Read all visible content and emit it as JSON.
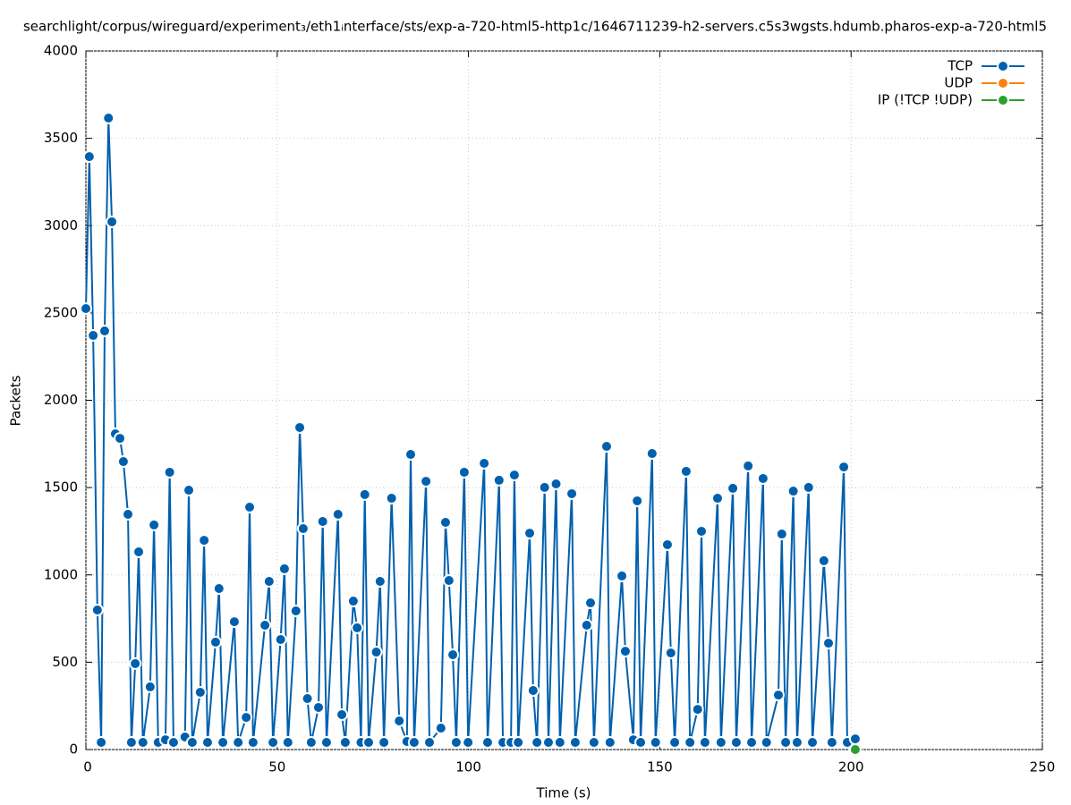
{
  "chart_data": {
    "type": "line",
    "title": "searchlight/corpus/wireguard/experiment₃/eth1ᵢnterface/sts/exp-a-720-html5-http1c/1646711239-h2-servers.c5s3wgsts.hdumb.pharos-exp-a-720-html5",
    "x_label": "Time (s)",
    "y_label": "Packets",
    "xlim": [
      0,
      250
    ],
    "xticks": [
      0,
      50,
      100,
      150,
      200,
      250
    ],
    "ylim": [
      0,
      4000
    ],
    "yticks": [
      0,
      500,
      1000,
      1500,
      2000,
      2500,
      3000,
      3500,
      4000
    ],
    "grid": true,
    "legend": "top-right",
    "series": [
      {
        "name": "TCP",
        "color": "#0060ad",
        "x": [
          0,
          0.9,
          1.9,
          3.0,
          4.0,
          4.9,
          5.9,
          6.8,
          7.7,
          8.9,
          9.8,
          11.0,
          11.9,
          12.9,
          13.8,
          14.9,
          16.8,
          17.8,
          18.9,
          20.8,
          21.9,
          22.9,
          25.9,
          26.9,
          27.8,
          29.9,
          30.9,
          31.8,
          33.9,
          34.8,
          35.8,
          38.8,
          39.8,
          41.9,
          42.8,
          43.7,
          46.8,
          47.9,
          48.9,
          50.9,
          51.9,
          52.8,
          54.9,
          55.9,
          56.8,
          57.9,
          58.9,
          60.8,
          61.9,
          62.9,
          65.9,
          66.9,
          67.8,
          69.9,
          70.9,
          71.9,
          72.9,
          73.9,
          75.9,
          76.9,
          77.9,
          79.9,
          81.9,
          83.9,
          84.9,
          85.8,
          88.9,
          89.8,
          92.8,
          94.0,
          94.9,
          95.9,
          96.8,
          98.9,
          99.9,
          104.1,
          105.0,
          108.0,
          109.0,
          111.1,
          112.0,
          113.0,
          116.0,
          116.9,
          117.9,
          119.9,
          120.9,
          122.9,
          123.9,
          127.0,
          127.9,
          130.9,
          131.9,
          132.8,
          136.1,
          137.0,
          140.1,
          141.0,
          143.1,
          144.1,
          145.0,
          148.0,
          148.9,
          152.0,
          152.9,
          153.9,
          156.9,
          157.9,
          159.9,
          160.9,
          161.8,
          165.1,
          166.0,
          169.1,
          170.0,
          173.1,
          174.0,
          177.0,
          177.9,
          181.0,
          181.9,
          182.9,
          184.9,
          185.9,
          188.9,
          189.9,
          192.9,
          194.1,
          195.0,
          198.1,
          199.0,
          201.1
        ],
        "values": [
          2525,
          3395,
          2371,
          799,
          41,
          2397,
          3616,
          3022,
          1808,
          1782,
          1649,
          1347,
          41,
          492,
          1132,
          41,
          359,
          1286,
          41,
          56,
          1588,
          41,
          72,
          1485,
          41,
          328,
          1198,
          41,
          615,
          922,
          41,
          732,
          41,
          184,
          1388,
          41,
          712,
          963,
          41,
          630,
          1035,
          41,
          794,
          1844,
          1265,
          292,
          41,
          241,
          1306,
          41,
          1347,
          200,
          41,
          850,
          697,
          41,
          1460,
          41,
          558,
          963,
          41,
          1439,
          164,
          46,
          1690,
          41,
          1536,
          41,
          123,
          1301,
          968,
          543,
          41,
          1588,
          41,
          1639,
          41,
          1542,
          41,
          41,
          1572,
          41,
          1239,
          338,
          41,
          1501,
          41,
          1521,
          41,
          1465,
          41,
          712,
          840,
          41,
          1736,
          41,
          994,
          563,
          56,
          1424,
          41,
          1695,
          41,
          1173,
          553,
          41,
          1593,
          41,
          230,
          1250,
          41,
          1439,
          41,
          1496,
          41,
          1624,
          41,
          1552,
          41,
          312,
          1234,
          41,
          1480,
          41,
          1501,
          41,
          1081,
          609,
          41,
          1618,
          41,
          61
        ]
      },
      {
        "name": "UDP",
        "color": "#ff7f0e",
        "x": [
          201.1
        ],
        "values": [
          0
        ]
      },
      {
        "name": "IP (!TCP  !UDP)",
        "color": "#2ca02c",
        "x": [
          201.1
        ],
        "values": [
          0
        ]
      }
    ]
  }
}
